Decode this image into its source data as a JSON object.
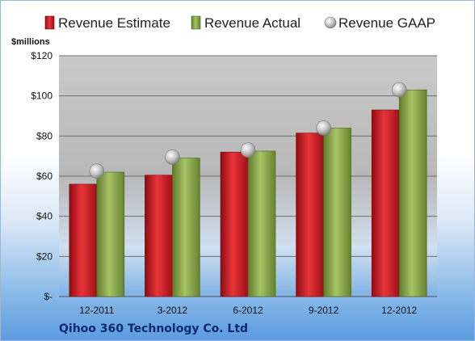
{
  "company": "Qihoo 360 Technology Co. Ltd",
  "colors": {
    "estimate": "#c8191f",
    "actual": "#8aa84a",
    "gaap": "#b9b9b9"
  },
  "chart_data": {
    "type": "bar",
    "unit_label": "$millions",
    "categories": [
      "12-2011",
      "3-2012",
      "6-2012",
      "9-2012",
      "12-2012"
    ],
    "series": [
      {
        "name": "Revenue Estimate",
        "kind": "bar",
        "values": [
          56,
          60.5,
          72,
          81.5,
          93
        ]
      },
      {
        "name": "Revenue Actual",
        "kind": "bar",
        "values": [
          62,
          69,
          72.5,
          84,
          103
        ]
      },
      {
        "name": "Revenue GAAP",
        "kind": "marker",
        "values": [
          62.5,
          69.5,
          73,
          84,
          103
        ]
      }
    ],
    "ylim": [
      0,
      120
    ],
    "y_ticks": [
      0,
      20,
      40,
      60,
      80,
      100,
      120
    ],
    "y_tick_labels": [
      "$-",
      "$20",
      "$40",
      "$60",
      "$80",
      "$100",
      "$120"
    ],
    "grid": true,
    "legend_position": "top"
  }
}
